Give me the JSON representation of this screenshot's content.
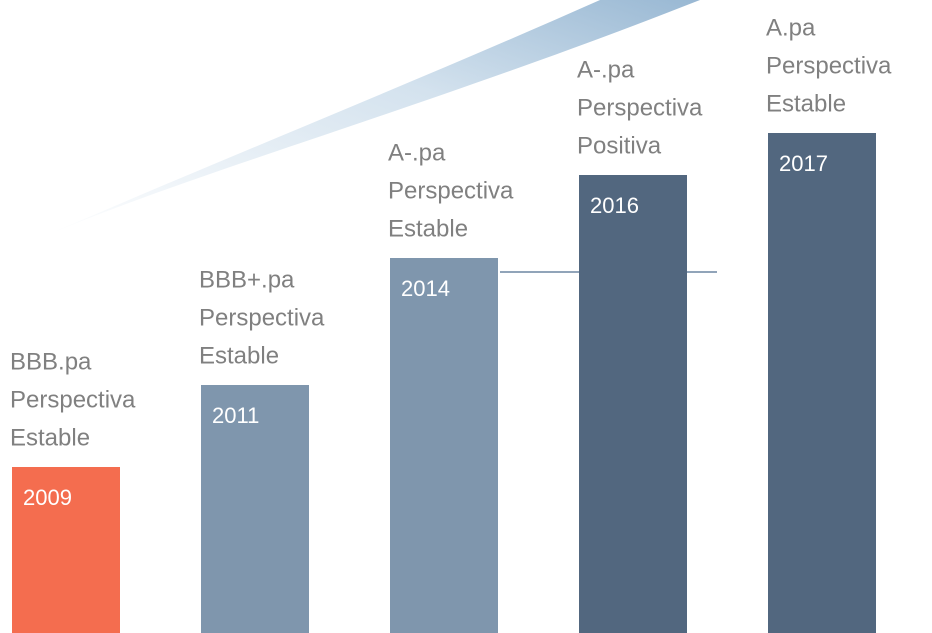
{
  "chart_data": {
    "type": "bar",
    "categories": [
      "2009",
      "2011",
      "2014",
      "2016",
      "2017"
    ],
    "values": [
      166,
      248,
      375,
      458,
      500
    ],
    "colors": [
      "#f46d4f",
      "#7f96ad",
      "#7f96ad",
      "#52677f",
      "#52677f"
    ],
    "annotations": [
      [
        "BBB.pa",
        "Perspectiva",
        "Estable"
      ],
      [
        "BBB+.pa",
        "Perspectiva",
        "Estable"
      ],
      [
        "A-.pa",
        "Perspectiva",
        "Estable"
      ],
      [
        "A-.pa",
        "Perspectiva",
        "Positiva"
      ],
      [
        "A.pa",
        "Perspectiva",
        "Estable"
      ]
    ],
    "ylim": [
      0,
      500
    ]
  }
}
